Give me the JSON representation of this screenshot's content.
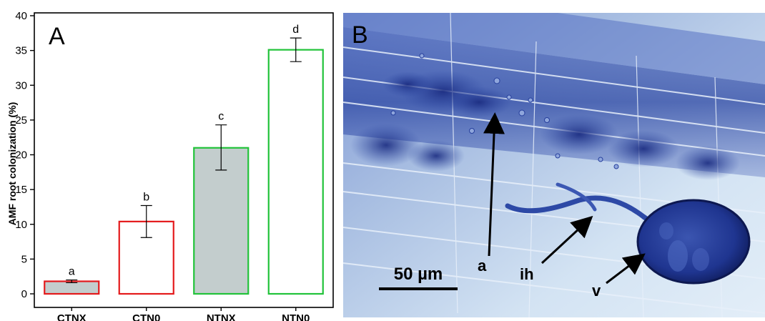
{
  "panel_a": {
    "letter": "A"
  },
  "panel_b": {
    "letter": "B",
    "scale_label": "50 µm",
    "labels": [
      "a",
      "ih",
      "v"
    ],
    "colors": {
      "background": "#cfe0f1",
      "stain": "#1f3a96",
      "vesicle": "#14246e",
      "cell_wall": "#eef4fb"
    }
  },
  "chart_data": {
    "type": "bar",
    "title": "",
    "xlabel": "",
    "ylabel": "AMF root colonization (%)",
    "ylim": [
      0,
      40
    ],
    "yticks": [
      0,
      5,
      10,
      15,
      20,
      25,
      30,
      35,
      40
    ],
    "grid": false,
    "categories": [
      "CTNX",
      "CTN0",
      "NTNX",
      "NTN0"
    ],
    "values": [
      1.8,
      10.4,
      21.0,
      35.1
    ],
    "error_low": [
      1.6,
      8.1,
      17.8,
      33.4
    ],
    "error_high": [
      2.0,
      12.7,
      24.3,
      36.8
    ],
    "letters": [
      "a",
      "b",
      "c",
      "d"
    ],
    "fill_colors": [
      "#c3cdcd",
      "#ffffff",
      "#c3cdcd",
      "#ffffff"
    ],
    "edge_colors": [
      "#e41a1c",
      "#e41a1c",
      "#22c33a",
      "#22c33a"
    ]
  }
}
